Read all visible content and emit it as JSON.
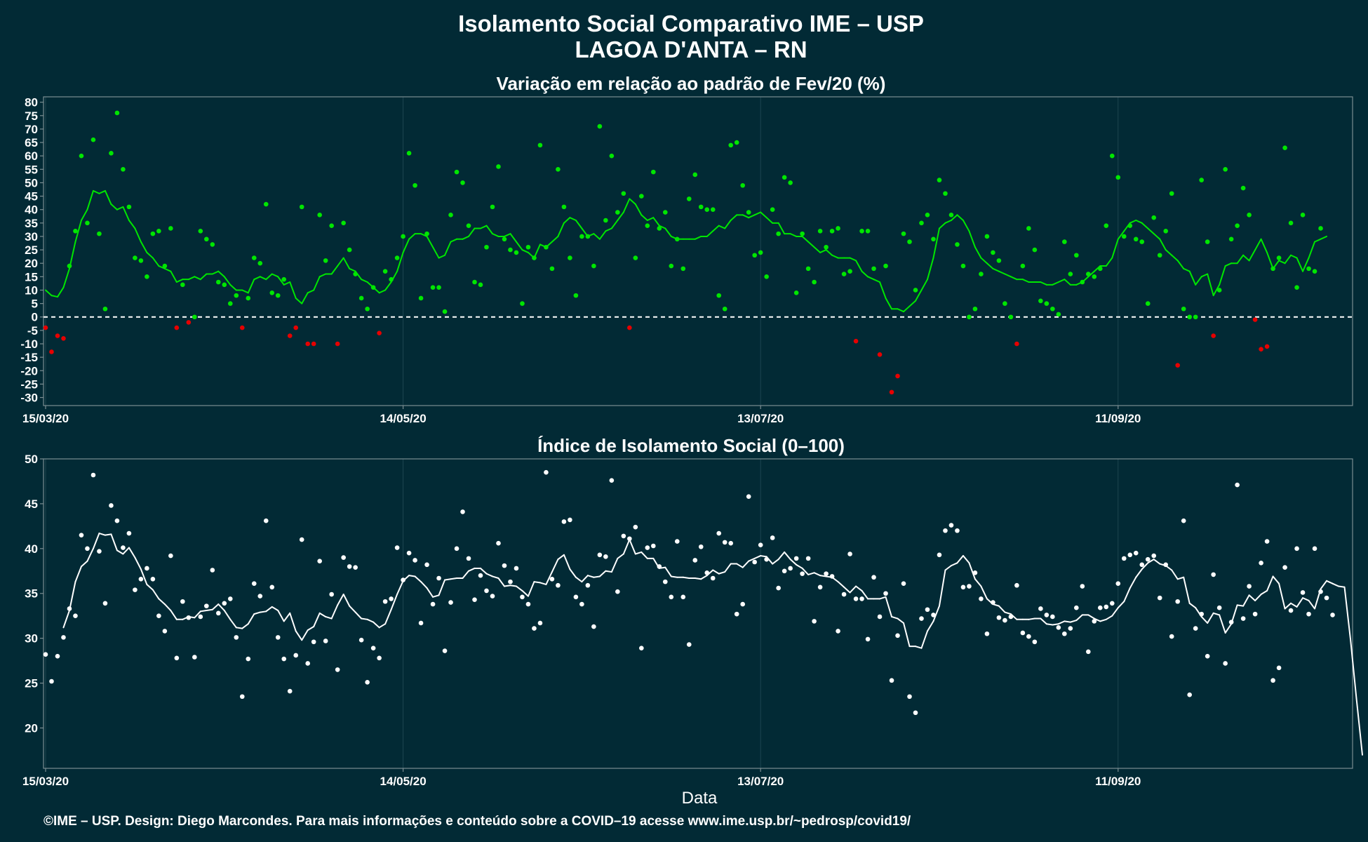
{
  "header": {
    "title_line1": "Isolamento Social Comparativo IME – USP",
    "title_line2": "LAGOA D'ANTA – RN"
  },
  "footer": {
    "credit": "©IME – USP. Design: Diego Marcondes. Para mais informações e conteúdo sobre a COVID–19 acesse www.ime.usp.br/~pedrosp/covid19/"
  },
  "colors": {
    "background": "#022a35",
    "above_zero": "#00e600",
    "below_zero": "#e60000",
    "index": "#ffffff",
    "zero_line": "#ffffff"
  },
  "chart_data": [
    {
      "type": "scatter",
      "title": "Variação em relação ao padrão de Fev/20 (%)",
      "xlabel": "",
      "ylabel": "",
      "x_start_date": "2020-03-15",
      "x_day_range": [
        0,
        219
      ],
      "xticks": [
        {
          "day": 0,
          "label": "15/03/20"
        },
        {
          "day": 60,
          "label": "14/05/20"
        },
        {
          "day": 120,
          "label": "13/07/20"
        },
        {
          "day": 180,
          "label": "11/09/20"
        }
      ],
      "ylim": [
        -33,
        82
      ],
      "yticks": [
        -30,
        -25,
        -20,
        -15,
        -10,
        -5,
        0,
        5,
        10,
        15,
        20,
        25,
        30,
        35,
        40,
        45,
        50,
        55,
        60,
        65,
        70,
        75,
        80
      ],
      "reference_line": 0,
      "series": [
        {
          "kind": "points",
          "values": [
            -4,
            -13,
            -7,
            -8,
            19,
            32,
            60,
            35,
            66,
            31,
            3,
            61,
            76,
            55,
            41,
            22,
            21,
            15,
            31,
            32,
            19,
            33,
            -4,
            12,
            -2,
            0,
            32,
            29,
            27,
            13,
            12,
            5,
            8,
            -4,
            7,
            22,
            20,
            42,
            9,
            8,
            14,
            -7,
            -4,
            41,
            -10,
            -10,
            38,
            21,
            34,
            -10,
            35,
            25,
            16,
            7,
            3,
            11,
            -6,
            17,
            14,
            22,
            30,
            61,
            49,
            7,
            31,
            11,
            11,
            2,
            38,
            54,
            50,
            34,
            13,
            12,
            26,
            41,
            56,
            29,
            25,
            24,
            5,
            26,
            22,
            64,
            26,
            18,
            55,
            41,
            22,
            8,
            30,
            30,
            19,
            71,
            36,
            60,
            39,
            46,
            -4,
            22,
            45,
            34,
            54,
            33,
            39,
            19,
            29,
            18,
            44,
            53,
            41,
            40,
            40,
            8,
            3,
            64,
            65,
            49,
            39,
            23,
            24,
            15,
            40,
            31,
            52,
            50,
            9,
            31,
            18,
            13,
            32,
            26,
            32,
            33,
            16,
            17,
            -9,
            32,
            32,
            18,
            -14,
            19,
            -28,
            -22,
            31,
            28,
            10,
            35,
            38,
            29,
            51,
            46,
            38,
            27,
            19,
            0,
            3,
            16,
            30,
            24,
            21,
            5,
            0,
            -10,
            19,
            33,
            25,
            6,
            5,
            3,
            1,
            28,
            16,
            23,
            13,
            16,
            15,
            18,
            34,
            60,
            52,
            30,
            34,
            29,
            28,
            5,
            37,
            23,
            32,
            46,
            -18,
            3,
            0,
            0,
            51,
            28,
            -7,
            10,
            55,
            29,
            34,
            48,
            38,
            -1,
            -12,
            -11,
            18,
            22,
            63,
            35,
            11,
            38,
            18,
            17,
            33
          ]
        },
        {
          "kind": "moving_average",
          "start_day": 0,
          "values": [
            10,
            8,
            7.5,
            11,
            18,
            28,
            36,
            40,
            47,
            46,
            47,
            42,
            40,
            41,
            36,
            33,
            28,
            24,
            22,
            19,
            18,
            17,
            13,
            14,
            14,
            15,
            14,
            16,
            16,
            17,
            15,
            12,
            10,
            10,
            9,
            14,
            15,
            14,
            16,
            15,
            12,
            13,
            7,
            5,
            9,
            10,
            15,
            16,
            16,
            19,
            22,
            18,
            17,
            14,
            13,
            11,
            9,
            10,
            13,
            17,
            24,
            29,
            31,
            31,
            30,
            26,
            22,
            23,
            28,
            29,
            29,
            30,
            33,
            33,
            34,
            31,
            30,
            30,
            31,
            28,
            25,
            24,
            22,
            27,
            26,
            28,
            30,
            35,
            37,
            36,
            33,
            30,
            31,
            29,
            32,
            33,
            36,
            39,
            44,
            42,
            38,
            36,
            37,
            34,
            33,
            30,
            29,
            29,
            29,
            29,
            30,
            30,
            32,
            34,
            33,
            36,
            38,
            38,
            37,
            38,
            39,
            37,
            35,
            35,
            31,
            31,
            30,
            30,
            28,
            26,
            24,
            25,
            23,
            22,
            22,
            22,
            21,
            17,
            15,
            14,
            13,
            7,
            3,
            3,
            2,
            4,
            6,
            10,
            14,
            22,
            33,
            35,
            36,
            38,
            36,
            32,
            26,
            22,
            20,
            18,
            17,
            16,
            15,
            14,
            14,
            13,
            13,
            13,
            12,
            12,
            13,
            14,
            12,
            12,
            13,
            15,
            17,
            19,
            19,
            22,
            29,
            32,
            35,
            36,
            35,
            33,
            31,
            29,
            25,
            23,
            21,
            18,
            17,
            12,
            15,
            16,
            8,
            12,
            19,
            20,
            20,
            23,
            21,
            25,
            29,
            24,
            18,
            21,
            20,
            23,
            22,
            17,
            22,
            28,
            29,
            30
          ]
        }
      ]
    },
    {
      "type": "scatter",
      "title": "Índice de Isolamento Social (0–100)",
      "xlabel": "Data",
      "ylabel": "",
      "x_start_date": "2020-03-15",
      "x_day_range": [
        0,
        219
      ],
      "xticks": [
        {
          "day": 0,
          "label": "15/03/20"
        },
        {
          "day": 60,
          "label": "14/05/20"
        },
        {
          "day": 120,
          "label": "13/07/20"
        },
        {
          "day": 180,
          "label": "11/09/20"
        }
      ],
      "ylim": [
        15.5,
        50
      ],
      "yticks": [
        20,
        25,
        30,
        35,
        40,
        45,
        50
      ],
      "series": [
        {
          "kind": "points",
          "values": [
            28.2,
            25.2,
            28,
            30.1,
            33.3,
            32.5,
            41.5,
            40,
            48.2,
            39.7,
            33.9,
            44.8,
            43.1,
            40.1,
            41.7,
            35.4,
            36.6,
            37.8,
            36.6,
            32.5,
            30.8,
            39.2,
            27.8,
            34.1,
            32.3,
            27.9,
            32.4,
            33.6,
            37.6,
            32.8,
            33.9,
            34.4,
            30.1,
            23.5,
            27.7,
            36.1,
            34.7,
            43.1,
            35.7,
            30.1,
            27.7,
            24.1,
            28.1,
            41,
            27.2,
            29.6,
            38.6,
            29.7,
            34.9,
            26.5,
            39,
            38,
            37.9,
            29.8,
            25.1,
            28.9,
            27.8,
            34.1,
            34.4,
            40.1,
            36.5,
            39.5,
            38.7,
            31.7,
            38.2,
            33.8,
            36.7,
            28.6,
            34,
            40,
            44.1,
            38.9,
            34.3,
            37,
            35.3,
            34.7,
            40.6,
            38.1,
            36.3,
            37.8,
            34.6,
            33.8,
            31.1,
            31.7,
            48.5,
            36.6,
            35.9,
            43,
            43.2,
            34.6,
            33.8,
            35.9,
            31.3,
            39.3,
            39.1,
            47.6,
            35.2,
            41.4,
            41.1,
            42.4,
            28.9,
            40.1,
            40.3,
            38,
            36.3,
            34.6,
            40.8,
            34.6,
            29.3,
            38.7,
            40.2,
            37.3,
            36.7,
            41.7,
            40.7,
            40.6,
            32.7,
            33.8,
            45.8,
            38.5,
            40.4,
            38.8,
            41.2,
            35.6,
            37.5,
            37.8,
            38.9,
            37.2,
            38.9,
            31.9,
            35.7,
            37.2,
            36.9,
            30.8,
            34.9,
            39.4,
            34.4,
            34.4,
            29.9,
            36.8,
            32.4,
            35,
            25.3,
            30.3,
            36.1,
            23.5,
            21.7,
            32.2,
            33.2,
            32.6,
            39.3,
            42,
            42.6,
            42,
            35.7,
            35.8,
            37.3,
            34.4,
            30.5,
            34,
            32.3,
            32,
            32.4,
            35.9,
            30.6,
            30.2,
            29.6,
            33.3,
            32.6,
            32.4,
            31.2,
            30.5,
            31.1,
            33.4,
            35.8,
            28.5,
            31.9,
            33.4,
            33.5,
            33.9,
            36.1,
            38.9,
            39.3,
            39.5,
            38.2,
            38.8,
            39.2,
            34.5,
            38.2,
            30.2,
            34.1,
            43.1,
            23.7,
            31.1,
            32.7,
            28,
            37.1,
            33.4,
            27.2,
            31.8,
            47.1,
            32.2,
            35.8,
            32.7,
            38.4,
            40.8,
            25.3,
            26.7,
            37.9,
            33.1,
            40,
            35.1,
            32.7,
            40,
            35.2,
            34.5,
            32.6
          ]
        },
        {
          "kind": "moving_average",
          "start_day": 3,
          "values": [
            31.2,
            33.1,
            36.3,
            38,
            38.6,
            40,
            41.7,
            41.5,
            41.6,
            39.8,
            39.4,
            40.1,
            39,
            37.7,
            36,
            35.4,
            34.4,
            33.8,
            33.1,
            32.1,
            32.1,
            32.4,
            32.3,
            33,
            33.1,
            33.2,
            33.8,
            33.1,
            32.1,
            31.2,
            31.1,
            31.6,
            32.7,
            32.9,
            33,
            33.5,
            33.1,
            31.9,
            32.8,
            30.8,
            29.8,
            30.9,
            31.3,
            32.8,
            32.4,
            32.2,
            33.7,
            34.9,
            33.6,
            32.9,
            32.2,
            32.1,
            31.8,
            31.2,
            31.6,
            33.2,
            34.9,
            36.4,
            37,
            36.9,
            36.3,
            35.6,
            34.6,
            34.8,
            36.5,
            36.6,
            36.7,
            36.7,
            37.5,
            37.8,
            37.8,
            37.2,
            36.9,
            36.7,
            35.8,
            35.9,
            35.8,
            35.3,
            34.7,
            36.3,
            36.2,
            36,
            37.4,
            38.8,
            39.3,
            37.7,
            36.8,
            36.3,
            37,
            36.8,
            36.9,
            37.5,
            37.4,
            38.9,
            39.4,
            41,
            39.4,
            39.6,
            38.9,
            38.9,
            37.8,
            37.9,
            36.9,
            36.8,
            36.8,
            36.7,
            36.7,
            36.6,
            37,
            37.6,
            37.2,
            37.4,
            38.3,
            38.3,
            37.9,
            38.6,
            38.9,
            39.2,
            39.1,
            38.3,
            38.8,
            39.6,
            38.8,
            38.2,
            37.8,
            37.1,
            37.3,
            37,
            36.9,
            36.8,
            36.3,
            35.7,
            35.1,
            35.8,
            35.3,
            34.4,
            34.4,
            34.4,
            34.6,
            32.4,
            32.2,
            31.7,
            29.1,
            29.1,
            28.9,
            30.8,
            31.9,
            33.6,
            37.6,
            38.1,
            38.4,
            39.2,
            38.4,
            36.6,
            35.8,
            34.4,
            33.8,
            33.6,
            32.9,
            32.7,
            32.1,
            32.1,
            32.1,
            32.2,
            32.2,
            31.6,
            31.5,
            31.6,
            31.9,
            31.8,
            32,
            32.6,
            32.6,
            32.2,
            31.9,
            32.1,
            32.5,
            33.4,
            34.1,
            35.6,
            36.8,
            37.7,
            38.4,
            38.8,
            38.3,
            38.1,
            37.6,
            36.6,
            36.8,
            33.9,
            33.4,
            32.4,
            31.7,
            32.8,
            32.6,
            30.6,
            31.6,
            33.7,
            33.6,
            34.8,
            34.2,
            34.9,
            35.3,
            36.9,
            36.1,
            33.3,
            33.9,
            33.5,
            34.5,
            34.2,
            33.3,
            35.5,
            36.4,
            36.1,
            35.8,
            35.7,
            29.9,
            23.3,
            17
          ]
        }
      ]
    }
  ]
}
